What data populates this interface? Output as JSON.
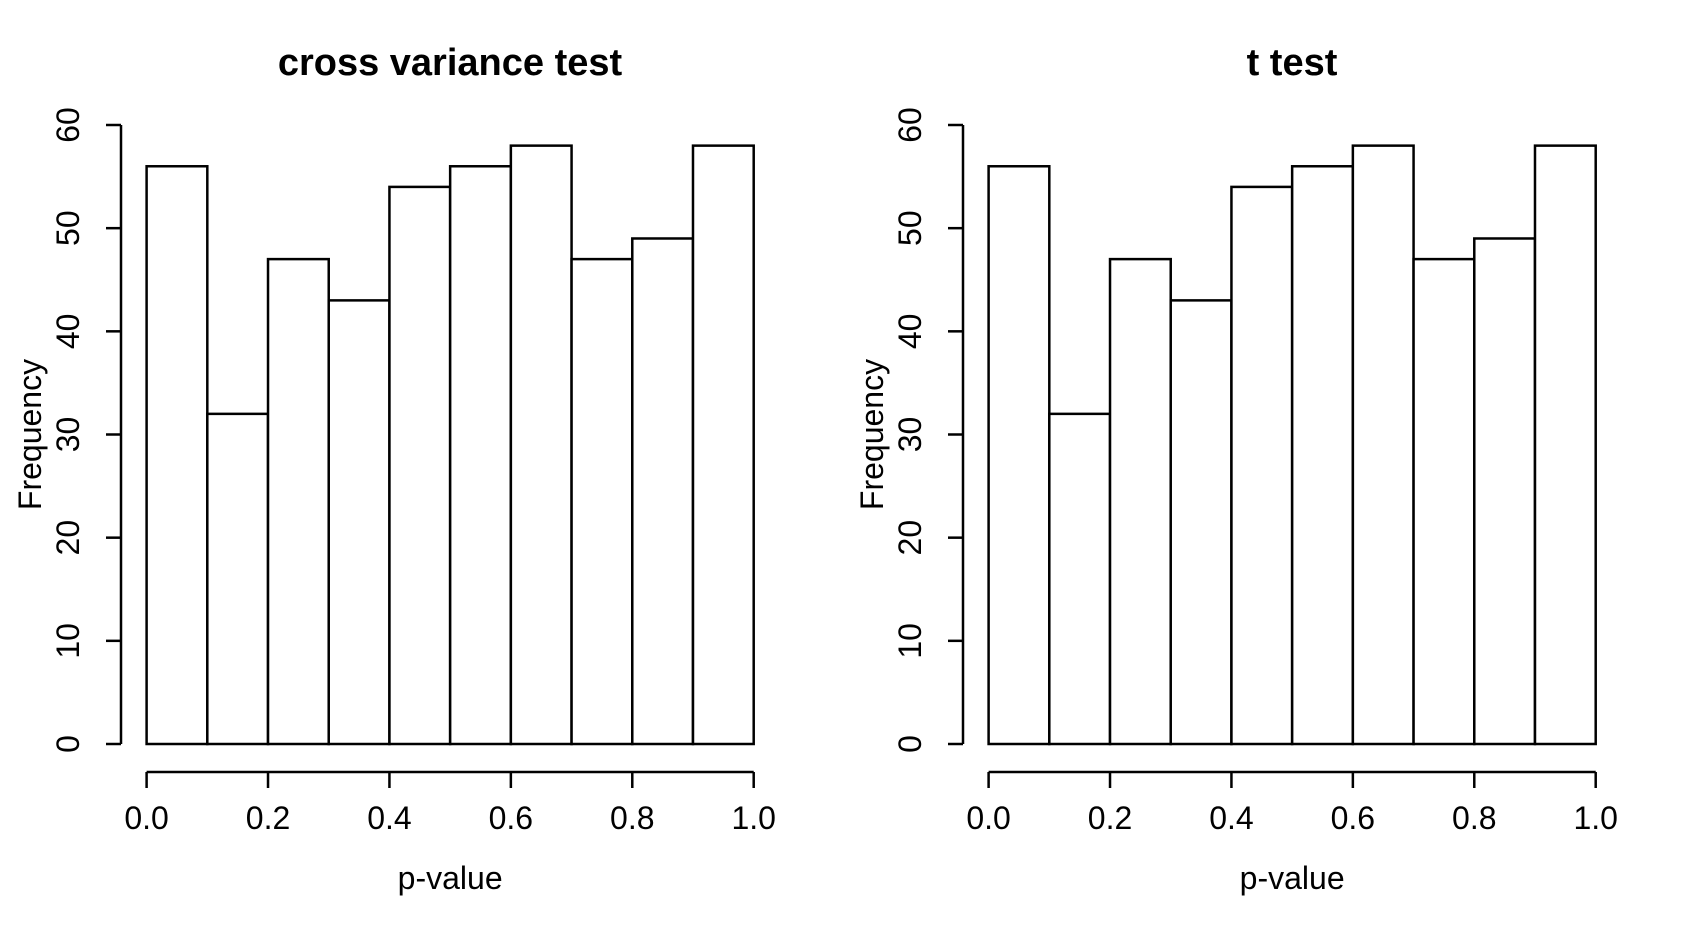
{
  "page": {
    "background": "#ffffff",
    "foreground": "#000000"
  },
  "chart_data": [
    {
      "type": "bar",
      "subtype": "histogram",
      "title": "cross variance test",
      "xlabel": "p-value",
      "ylabel": "Frequency",
      "categories": [
        "0.0-0.1",
        "0.1-0.2",
        "0.2-0.3",
        "0.3-0.4",
        "0.4-0.5",
        "0.5-0.6",
        "0.6-0.7",
        "0.7-0.8",
        "0.8-0.9",
        "0.9-1.0"
      ],
      "values": [
        56,
        32,
        47,
        43,
        54,
        56,
        58,
        47,
        49,
        58
      ],
      "xlim": [
        0,
        1
      ],
      "ylim": [
        0,
        60
      ],
      "x_tick_labels": [
        "0.0",
        "0.2",
        "0.4",
        "0.6",
        "0.8",
        "1.0"
      ],
      "y_tick_labels": [
        "0",
        "10",
        "20",
        "30",
        "40",
        "50",
        "60"
      ],
      "bar_fill": "#ffffff",
      "bar_stroke": "#000000",
      "grid": false,
      "legend": false
    },
    {
      "type": "bar",
      "subtype": "histogram",
      "title": "t test",
      "xlabel": "p-value",
      "ylabel": "Frequency",
      "categories": [
        "0.0-0.1",
        "0.1-0.2",
        "0.2-0.3",
        "0.3-0.4",
        "0.4-0.5",
        "0.5-0.6",
        "0.6-0.7",
        "0.7-0.8",
        "0.8-0.9",
        "0.9-1.0"
      ],
      "values": [
        56,
        32,
        47,
        43,
        54,
        56,
        58,
        47,
        49,
        58
      ],
      "xlim": [
        0,
        1
      ],
      "ylim": [
        0,
        60
      ],
      "x_tick_labels": [
        "0.0",
        "0.2",
        "0.4",
        "0.6",
        "0.8",
        "1.0"
      ],
      "y_tick_labels": [
        "0",
        "10",
        "20",
        "30",
        "40",
        "50",
        "60"
      ],
      "bar_fill": "#ffffff",
      "bar_stroke": "#000000",
      "grid": false,
      "legend": false
    }
  ]
}
